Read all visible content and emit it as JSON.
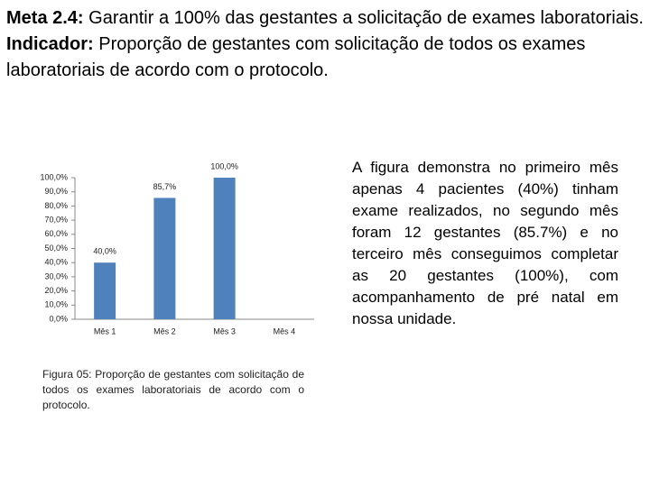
{
  "heading": {
    "goal_label": "Meta 2.4:",
    "goal_text": "Garantir a 100% das gestantes a solicitação de exames laboratoriais.",
    "indicator_label": "Indicador:",
    "indicator_text": "Proporção de gestantes com solicitação de todos os exames laboratoriais de acordo com o protocolo."
  },
  "chart_data": {
    "type": "bar",
    "categories": [
      "Mês 1",
      "Mês 2",
      "Mês 3",
      "Mês 4"
    ],
    "values": [
      40,
      85.7,
      100,
      null
    ],
    "value_labels": [
      "40,0%",
      "85,7%",
      "100,0%",
      null
    ],
    "color": "#4f81bd",
    "ylim": [
      0,
      100
    ],
    "yticks": [
      {
        "value": 0,
        "label": "0,0%"
      },
      {
        "value": 10,
        "label": "10,0%"
      },
      {
        "value": 20,
        "label": "20,0%"
      },
      {
        "value": 30,
        "label": "30,0%"
      },
      {
        "value": 40,
        "label": "40,0%"
      },
      {
        "value": 50,
        "label": "50,0%"
      },
      {
        "value": 60,
        "label": "60,0%"
      },
      {
        "value": 70,
        "label": "70,0%"
      },
      {
        "value": 80,
        "label": "80,0%"
      },
      {
        "value": 90,
        "label": "90,0%"
      },
      {
        "value": 100,
        "label": "100,0%"
      }
    ]
  },
  "caption": "Figura 05: Proporção de gestantes com solicitação de todos os exames laboratoriais de acordo com o protocolo.",
  "paragraph": "A figura demonstra no primeiro mês apenas 4 pacientes (40%) tinham exame realizados, no segundo mês foram 12 gestantes (85.7%) e no terceiro mês conseguimos completar as 20 gestantes (100%), com acompanhamento de pré natal em nossa unidade."
}
